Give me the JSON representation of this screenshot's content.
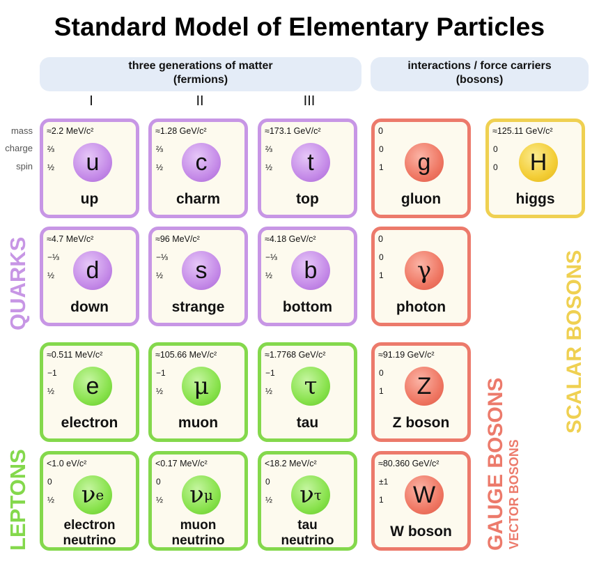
{
  "title": "Standard Model of Elementary Particles",
  "headers": {
    "fermions_line1": "three generations of matter",
    "fermions_line2": "(fermions)",
    "bosons_line1": "interactions / force carriers",
    "bosons_line2": "(bosons)"
  },
  "generations": [
    "I",
    "II",
    "III"
  ],
  "row_labels": {
    "mass": "mass",
    "charge": "charge",
    "spin": "spin"
  },
  "group_labels": {
    "quarks": "QUARKS",
    "leptons": "LEPTONS",
    "gauge": "GAUGE BOSONS",
    "vector": "VECTOR BOSONS",
    "scalar": "SCALAR BOSONS"
  },
  "colors": {
    "quark": "#c796e5",
    "lepton": "#84d84c",
    "gauge": "#ec7a6b",
    "scalar": "#efd051"
  },
  "particles": {
    "up": {
      "mass": "≈2.2 MeV/c²",
      "charge": "⅔",
      "spin": "½",
      "symbol": "u",
      "name": "up"
    },
    "charm": {
      "mass": "≈1.28 GeV/c²",
      "charge": "⅔",
      "spin": "½",
      "symbol": "c",
      "name": "charm"
    },
    "top": {
      "mass": "≈173.1 GeV/c²",
      "charge": "⅔",
      "spin": "½",
      "symbol": "t",
      "name": "top"
    },
    "gluon": {
      "mass": "0",
      "charge": "0",
      "spin": "1",
      "symbol": "g",
      "name": "gluon"
    },
    "higgs": {
      "mass": "≈125.11 GeV/c²",
      "charge": "0",
      "spin": "0",
      "symbol": "H",
      "name": "higgs"
    },
    "down": {
      "mass": "≈4.7 MeV/c²",
      "charge": "−⅓",
      "spin": "½",
      "symbol": "d",
      "name": "down"
    },
    "strange": {
      "mass": "≈96 MeV/c²",
      "charge": "−⅓",
      "spin": "½",
      "symbol": "s",
      "name": "strange"
    },
    "bottom": {
      "mass": "≈4.18 GeV/c²",
      "charge": "−⅓",
      "spin": "½",
      "symbol": "b",
      "name": "bottom"
    },
    "photon": {
      "mass": "0",
      "charge": "0",
      "spin": "1",
      "symbol": "γ",
      "name": "photon"
    },
    "electron": {
      "mass": "≈0.511 MeV/c²",
      "charge": "−1",
      "spin": "½",
      "symbol": "e",
      "name": "electron"
    },
    "muon": {
      "mass": "≈105.66 MeV/c²",
      "charge": "−1",
      "spin": "½",
      "symbol": "μ",
      "name": "muon"
    },
    "tau": {
      "mass": "≈1.7768 GeV/c²",
      "charge": "−1",
      "spin": "½",
      "symbol": "τ",
      "name": "tau"
    },
    "zboson": {
      "mass": "≈91.19 GeV/c²",
      "charge": "0",
      "spin": "1",
      "symbol": "Z",
      "name": "Z boson"
    },
    "nue": {
      "mass": "<1.0 eV/c²",
      "charge": "0",
      "spin": "½",
      "symbol": "ν",
      "sub": "e",
      "name1": "electron",
      "name2": "neutrino"
    },
    "numu": {
      "mass": "<0.17 MeV/c²",
      "charge": "0",
      "spin": "½",
      "symbol": "ν",
      "sub": "μ",
      "name1": "muon",
      "name2": "neutrino"
    },
    "nutau": {
      "mass": "<18.2 MeV/c²",
      "charge": "0",
      "spin": "½",
      "symbol": "ν",
      "sub": "τ",
      "name1": "tau",
      "name2": "neutrino"
    },
    "wboson": {
      "mass": "≈80.360 GeV/c²",
      "charge": "±1",
      "spin": "1",
      "symbol": "W",
      "name": "W boson"
    }
  }
}
